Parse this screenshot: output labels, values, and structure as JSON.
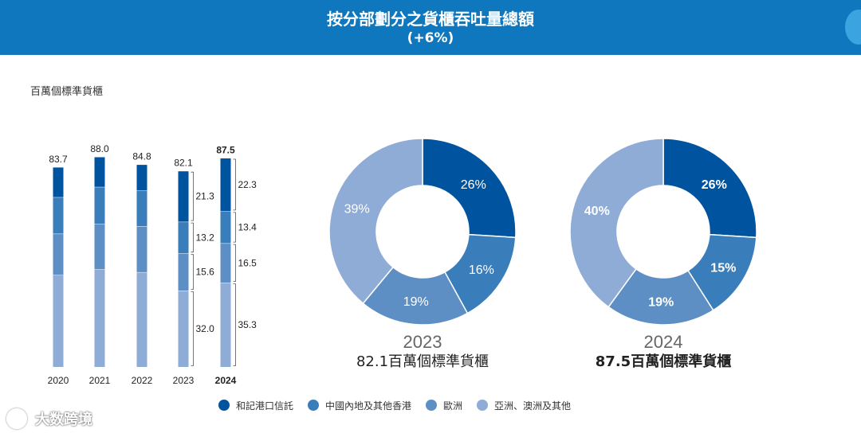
{
  "header": {
    "title": "按分部劃分之貨櫃吞吐量總額",
    "subtitle": "(+6%)"
  },
  "unit_label": "百萬個標準貨櫃",
  "legend": [
    {
      "label": "和記港口信託",
      "color": "#00539f"
    },
    {
      "label": "中國內地及其他香港",
      "color": "#3a7dbb"
    },
    {
      "label": "歐洲",
      "color": "#5e8fc4"
    },
    {
      "label": "亞洲、澳洲及其他",
      "color": "#8eacd5"
    }
  ],
  "watermark": "大数跨境",
  "chart_data": [
    {
      "type": "bar",
      "stacked": true,
      "categories": [
        "2020",
        "2021",
        "2022",
        "2023",
        "2024"
      ],
      "totals": [
        "83.7",
        "88.0",
        "84.8",
        "82.1",
        "87.5"
      ],
      "series": [
        {
          "name": "亞洲、澳洲及其他",
          "values": [
            38.5,
            40.9,
            39.7,
            32.0,
            35.3
          ]
        },
        {
          "name": "歐洲",
          "values": [
            17.3,
            19.0,
            19.3,
            15.6,
            16.5
          ]
        },
        {
          "name": "中國內地及其他香港",
          "values": [
            15.3,
            15.5,
            14.9,
            13.2,
            13.4
          ]
        },
        {
          "name": "和記港口信託",
          "values": [
            12.6,
            12.6,
            10.9,
            21.3,
            22.3
          ]
        }
      ],
      "segment_labels": {
        "2023": [
          "32.0",
          "15.6",
          "13.2",
          "21.3"
        ],
        "2024": [
          "35.3",
          "16.5",
          "13.4",
          "22.3"
        ]
      },
      "highlight": "2024",
      "ylim": [
        0,
        100
      ]
    },
    {
      "type": "pie",
      "donut": true,
      "year": "2023",
      "caption": "82.1百萬個標準貨櫃",
      "slices": [
        {
          "name": "和記港口信託",
          "value": 26,
          "label": "26%"
        },
        {
          "name": "中國內地及其他香港",
          "value": 16,
          "label": "16%"
        },
        {
          "name": "歐洲",
          "value": 19,
          "label": "19%"
        },
        {
          "name": "亞洲、澳洲及其他",
          "value": 39,
          "label": "39%"
        }
      ]
    },
    {
      "type": "pie",
      "donut": true,
      "year": "2024",
      "caption": "87.5百萬個標準貨櫃",
      "slices": [
        {
          "name": "和記港口信託",
          "value": 26,
          "label": "26%"
        },
        {
          "name": "中國內地及其他香港",
          "value": 15,
          "label": "15%"
        },
        {
          "name": "歐洲",
          "value": 19,
          "label": "19%"
        },
        {
          "name": "亞洲、澳洲及其他",
          "value": 40,
          "label": "40%"
        }
      ]
    }
  ]
}
